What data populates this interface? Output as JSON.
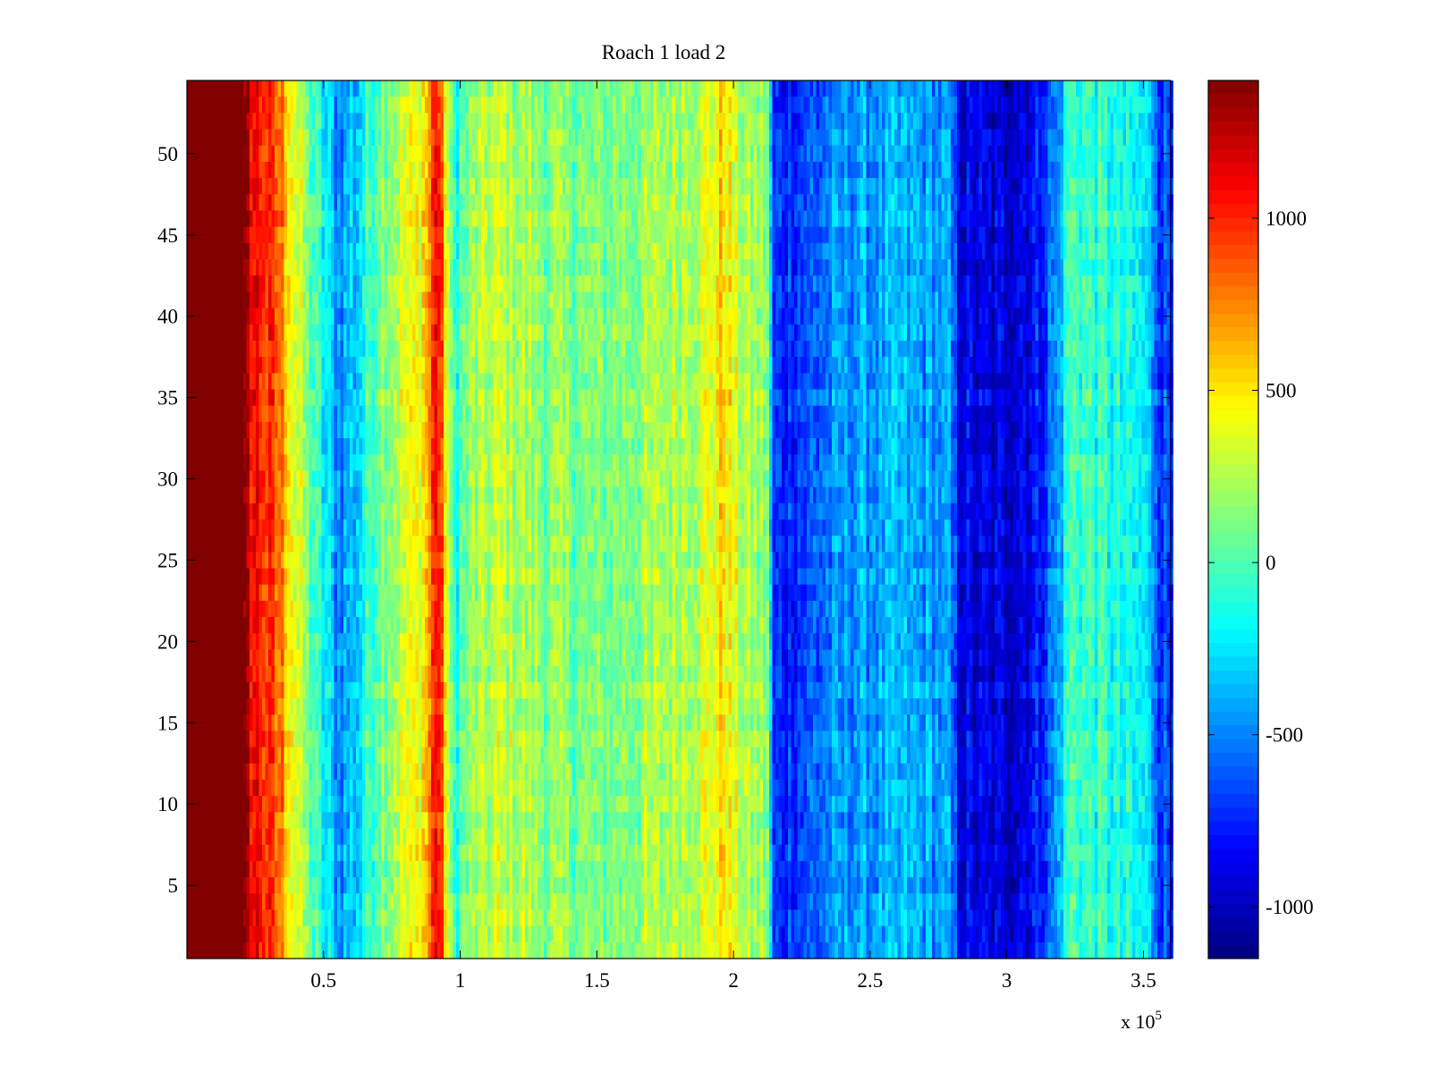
{
  "chart_data": {
    "type": "heatmap",
    "title": "Roach 1 load 2",
    "xlabel": "",
    "ylabel": "",
    "x_exponent_label": "x 10",
    "x_exponent_power": "5",
    "xlim": [
      0,
      3.6
    ],
    "ylim": [
      0.5,
      54.5
    ],
    "x_ticks": [
      0.5,
      1,
      1.5,
      2,
      2.5,
      3,
      3.5
    ],
    "x_tick_labels": [
      "0.5",
      "1",
      "1.5",
      "2",
      "2.5",
      "3",
      "3.5"
    ],
    "y_ticks": [
      5,
      10,
      15,
      20,
      25,
      30,
      35,
      40,
      45,
      50
    ],
    "y_tick_labels": [
      "5",
      "10",
      "15",
      "20",
      "25",
      "30",
      "35",
      "40",
      "45",
      "50"
    ],
    "rows": 54,
    "colormap": "jet",
    "clim": [
      -1150,
      1400
    ],
    "colorbar_ticks": [
      -1000,
      -500,
      0,
      500,
      1000
    ],
    "colorbar_tick_labels": [
      "-1000",
      "-500",
      "0",
      "500",
      "1000"
    ],
    "column_profile": [
      {
        "x": 0.0,
        "value": 1400
      },
      {
        "x": 0.2,
        "value": 1400
      },
      {
        "x": 0.23,
        "value": 1150
      },
      {
        "x": 0.28,
        "value": 1000
      },
      {
        "x": 0.34,
        "value": 800
      },
      {
        "x": 0.4,
        "value": 350
      },
      {
        "x": 0.46,
        "value": 0
      },
      {
        "x": 0.55,
        "value": -450
      },
      {
        "x": 0.62,
        "value": -300
      },
      {
        "x": 0.7,
        "value": 150
      },
      {
        "x": 0.78,
        "value": 300
      },
      {
        "x": 0.85,
        "value": 450
      },
      {
        "x": 0.88,
        "value": 650
      },
      {
        "x": 0.91,
        "value": 1150
      },
      {
        "x": 0.94,
        "value": 650
      },
      {
        "x": 0.97,
        "value": -100
      },
      {
        "x": 1.05,
        "value": 200
      },
      {
        "x": 1.15,
        "value": 300
      },
      {
        "x": 1.3,
        "value": 150
      },
      {
        "x": 1.5,
        "value": 100
      },
      {
        "x": 1.7,
        "value": 200
      },
      {
        "x": 1.9,
        "value": 350
      },
      {
        "x": 1.96,
        "value": 550
      },
      {
        "x": 2.02,
        "value": 250
      },
      {
        "x": 2.12,
        "value": 150
      },
      {
        "x": 2.14,
        "value": -750
      },
      {
        "x": 2.25,
        "value": -650
      },
      {
        "x": 2.4,
        "value": -450
      },
      {
        "x": 2.6,
        "value": -400
      },
      {
        "x": 2.78,
        "value": -450
      },
      {
        "x": 2.82,
        "value": -850
      },
      {
        "x": 2.95,
        "value": -950
      },
      {
        "x": 3.1,
        "value": -800
      },
      {
        "x": 3.18,
        "value": -450
      },
      {
        "x": 3.22,
        "value": 0
      },
      {
        "x": 3.35,
        "value": -100
      },
      {
        "x": 3.5,
        "value": -250
      },
      {
        "x": 3.56,
        "value": -650
      },
      {
        "x": 3.6,
        "value": -700
      }
    ],
    "noise_amplitude": 220
  }
}
